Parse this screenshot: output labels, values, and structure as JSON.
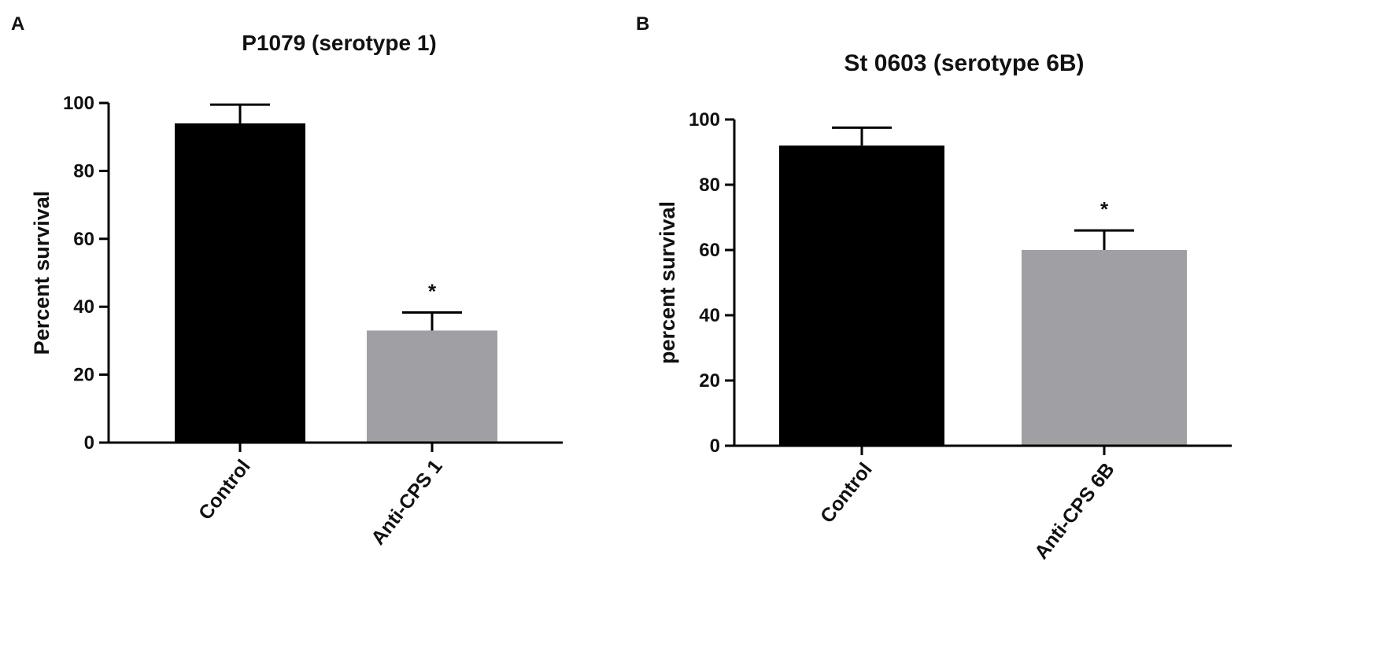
{
  "chart_data": [
    {
      "type": "bar",
      "panel_label": "A",
      "title": "P1079 (serotype 1)",
      "ylabel": "Percent survival",
      "categories": [
        "Control",
        "Anti-CPS 1"
      ],
      "values": [
        94,
        33
      ],
      "errors": [
        5.5,
        5.3
      ],
      "annotations": [
        null,
        "*"
      ],
      "colors": [
        "#000000",
        "#a0a0a4"
      ],
      "ylim": [
        0,
        100
      ],
      "yticks": [
        0,
        20,
        40,
        60,
        80,
        100
      ],
      "grid": false
    },
    {
      "type": "bar",
      "panel_label": "B",
      "title": "St 0603 (serotype 6B)",
      "ylabel": "percent survival",
      "categories": [
        "Control",
        "Anti-CPS 6B"
      ],
      "values": [
        92,
        60
      ],
      "errors": [
        5.5,
        6
      ],
      "annotations": [
        null,
        "*"
      ],
      "colors": [
        "#000000",
        "#a0a0a4"
      ],
      "ylim": [
        0,
        100
      ],
      "yticks": [
        0,
        20,
        40,
        60,
        80,
        100
      ],
      "grid": false
    }
  ]
}
